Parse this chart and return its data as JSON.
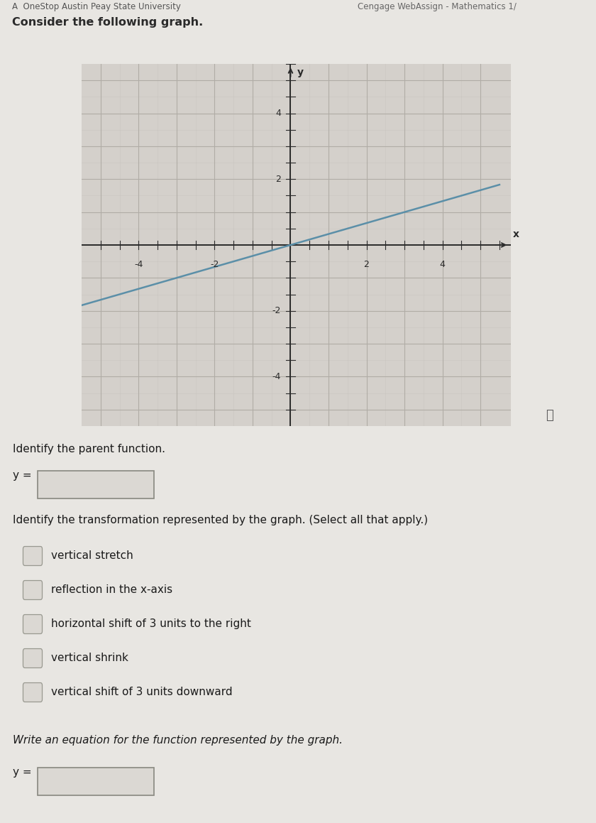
{
  "header_left": "A  OneStop Austin Peay State University",
  "header_right": "Cengage WebAssign - Mathematics 1/",
  "consider_text": "Consider the following graph.",
  "bg_color": "#e8e6e2",
  "graph_bg": "#d4d0cb",
  "line_color": "#5b8fa8",
  "line_x_start": -5.5,
  "line_x_end": 5.5,
  "line_slope": 0.333,
  "xlim": [
    -5.5,
    5.8
  ],
  "ylim": [
    -5.5,
    5.5
  ],
  "xticks": [
    -4,
    -2,
    2,
    4
  ],
  "yticks": [
    -4,
    -2,
    2,
    4
  ],
  "xlabel": "x",
  "ylabel": "y",
  "grid_minor_color": "#c4c0bb",
  "grid_major_color": "#b0aca6",
  "axis_color": "#2a2a2a",
  "identify_parent_text": "Identify the parent function.",
  "y_eq_label": "y =",
  "transformation_text": "Identify the transformation represented by the graph. (Select all that apply.)",
  "checkboxes": [
    "vertical stretch",
    "reflection in the x-axis",
    "horizontal shift of 3 units to the right",
    "vertical shrink",
    "vertical shift of 3 units downward"
  ],
  "write_eq_text": "Write an equation for the function represented by the graph.",
  "info_circle": "ⓘ",
  "line_width": 1.8,
  "box_facecolor": "#dbd8d3",
  "box_edgecolor": "#888880"
}
